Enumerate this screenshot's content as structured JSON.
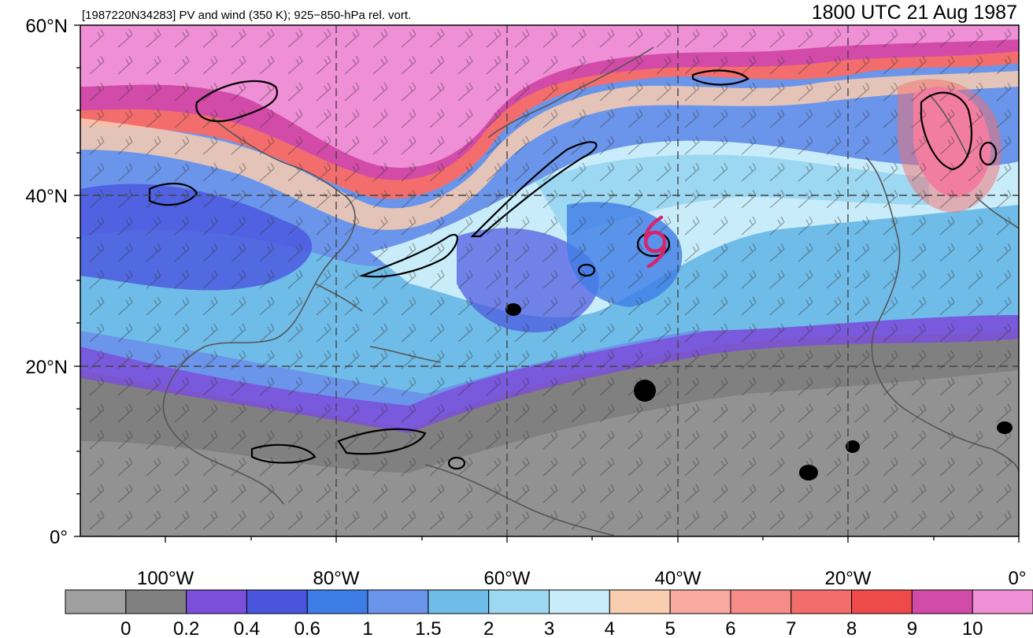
{
  "header": {
    "storm_id_label": "[1987220N34283] PV and wind (350 K); 925−850-hPa rel. vort.",
    "valid_time": "1800 UTC 21 Aug 1987"
  },
  "axes": {
    "lat_labels": [
      "60°N",
      "40°N",
      "20°N",
      "0°"
    ],
    "lon_labels": [
      "100°W",
      "80°W",
      "60°W",
      "40°W",
      "20°W",
      "0°"
    ]
  },
  "colorbar": {
    "tick_labels": [
      "0",
      "0.2",
      "0.4",
      "0.6",
      "1",
      "1.5",
      "2",
      "3",
      "4",
      "5",
      "6",
      "7",
      "8",
      "9",
      "10"
    ],
    "colors": [
      "#a0a0a0",
      "#808080",
      "#7b4fd9",
      "#4a55de",
      "#3e7de6",
      "#6b95ea",
      "#6fbce8",
      "#9dd8f2",
      "#c9ecfa",
      "#f9cdb0",
      "#f9aaa0",
      "#f58c88",
      "#f36d6c",
      "#ef4a4a",
      "#d24ba8",
      "#ef8fd6"
    ]
  },
  "map": {
    "extent": {
      "lon_min": -110,
      "lon_max": 0,
      "lat_min": 0,
      "lat_max": 60
    },
    "storm_symbol": {
      "lon": -43,
      "lat": 34.5,
      "color": "#d6246f",
      "icon": "tropical-cyclone-icon"
    }
  }
}
